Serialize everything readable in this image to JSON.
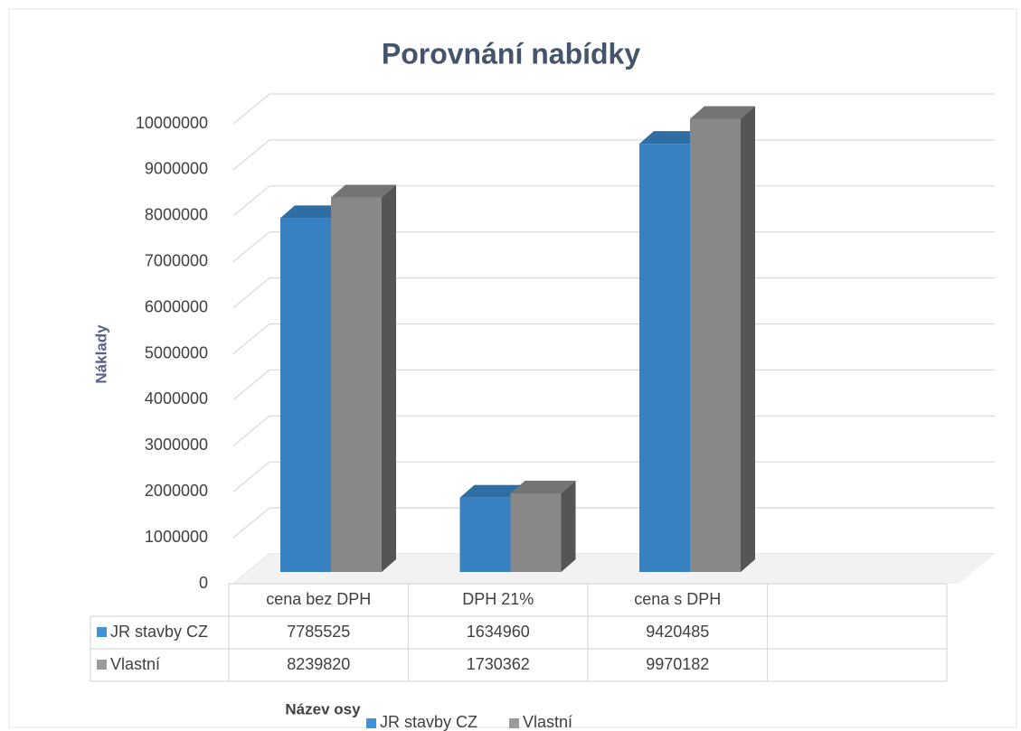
{
  "chart_data": {
    "type": "bar3d",
    "title": "Porovnání nabídky",
    "y_axis_label": "Náklady",
    "x_axis_label": "Název osy",
    "categories": [
      "cena bez DPH",
      "DPH 21%",
      "cena s DPH",
      null
    ],
    "series": [
      {
        "name": "JR stavby CZ",
        "color": "#3f93dd",
        "values": [
          7785525,
          1634960,
          9420485,
          null
        ]
      },
      {
        "name": "Vlastní",
        "color": "#9b9b9b",
        "values": [
          8239820,
          1730362,
          9970182,
          null
        ]
      }
    ],
    "ylim": [
      0,
      10000000
    ],
    "yticks": [
      0,
      1000000,
      2000000,
      3000000,
      4000000,
      5000000,
      6000000,
      7000000,
      8000000,
      9000000,
      10000000
    ],
    "grid": true,
    "data_table": true,
    "legend": "bottom"
  }
}
